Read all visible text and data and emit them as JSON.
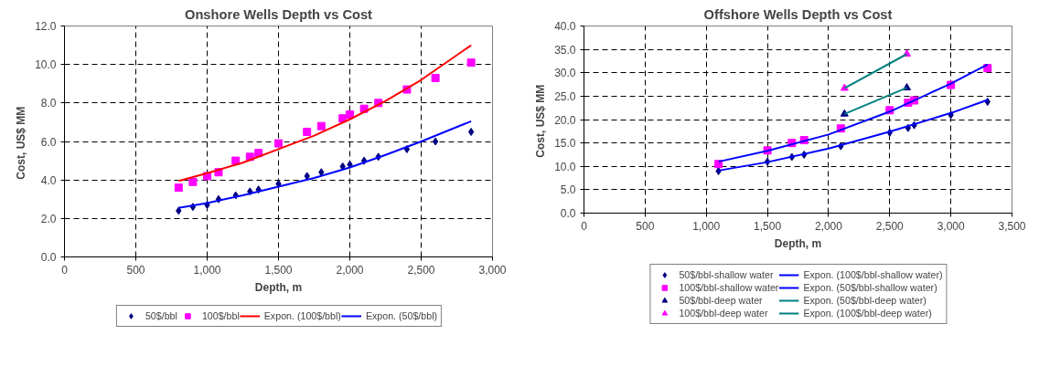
{
  "chart_data": [
    {
      "type": "scatter",
      "title": "Onshore Wells Depth vs Cost",
      "xlabel": "Depth, m",
      "ylabel": "Cost,  US$ MM",
      "xlim": [
        0,
        3000
      ],
      "xticks": [
        0,
        500,
        {
          "value": 1000,
          "label": "1,000"
        },
        {
          "value": 1500,
          "label": "1,500"
        },
        {
          "value": 2000,
          "label": "2,000"
        },
        {
          "value": 2500,
          "label": "2,500"
        },
        {
          "value": 3000,
          "label": "3,000"
        }
      ],
      "ylim": [
        0,
        12
      ],
      "yticks": [
        {
          "value": 0,
          "label": "0.0"
        },
        {
          "value": 2,
          "label": "2.0"
        },
        {
          "value": 4,
          "label": "4.0"
        },
        {
          "value": 6,
          "label": "6.0"
        },
        {
          "value": 8,
          "label": "8.0"
        },
        {
          "value": 10,
          "label": "10.0"
        },
        {
          "value": 12,
          "label": "12.0"
        }
      ],
      "grid": true,
      "legend": "bottom",
      "line_style": "solid",
      "series": [
        {
          "name": "50$/bbl",
          "marker": "diamond",
          "color": "#000080",
          "x": [
            800,
            900,
            1000,
            1080,
            1200,
            1300,
            1360,
            1500,
            1700,
            1800,
            1950,
            2000,
            2100,
            2200,
            2400,
            2600,
            2850
          ],
          "values": [
            2.4,
            2.6,
            2.7,
            3.0,
            3.2,
            3.4,
            3.5,
            3.8,
            4.2,
            4.4,
            4.7,
            4.8,
            5.0,
            5.2,
            5.6,
            6.0,
            6.5
          ]
        },
        {
          "name": "100$/bbl",
          "marker": "square",
          "color": "#ff00ff",
          "x": [
            800,
            900,
            1000,
            1080,
            1200,
            1300,
            1360,
            1500,
            1700,
            1800,
            1950,
            2000,
            2100,
            2200,
            2400,
            2600,
            2850
          ],
          "values": [
            3.6,
            3.9,
            4.2,
            4.4,
            5.0,
            5.2,
            5.4,
            5.9,
            6.5,
            6.8,
            7.2,
            7.4,
            7.7,
            8.0,
            8.7,
            9.3,
            10.1
          ]
        },
        {
          "name": "Expon. (100$/bbl)",
          "type": "line",
          "color": "#ff0000",
          "x": [
            800,
            1000,
            1250,
            1500,
            1750,
            2000,
            2250,
            2500,
            2850
          ],
          "values": [
            3.95,
            4.35,
            4.9,
            5.6,
            6.3,
            7.15,
            8.1,
            9.2,
            11.0
          ]
        },
        {
          "name": "Expon. (50$/bbl)",
          "type": "line",
          "color": "#0000ff",
          "x": [
            800,
            1000,
            1250,
            1500,
            1750,
            2000,
            2250,
            2500,
            2850
          ],
          "values": [
            2.55,
            2.8,
            3.2,
            3.65,
            4.1,
            4.65,
            5.3,
            6.0,
            7.05
          ]
        }
      ]
    },
    {
      "type": "scatter",
      "title": "Offshore Wells Depth vs Cost",
      "xlabel": "Depth, m",
      "ylabel": "Cost,  US$ MM",
      "xlim": [
        0,
        3500
      ],
      "xticks": [
        0,
        500,
        {
          "value": 1000,
          "label": "1,000"
        },
        {
          "value": 1500,
          "label": "1,500"
        },
        {
          "value": 2000,
          "label": "2,000"
        },
        {
          "value": 2500,
          "label": "2,500"
        },
        {
          "value": 3000,
          "label": "3,000"
        },
        {
          "value": 3500,
          "label": "3,500"
        }
      ],
      "ylim": [
        0,
        40
      ],
      "yticks": [
        {
          "value": 0,
          "label": "0.0"
        },
        {
          "value": 5,
          "label": "5.0"
        },
        {
          "value": 10,
          "label": "10.0"
        },
        {
          "value": 15,
          "label": "15.0"
        },
        {
          "value": 20,
          "label": "20.0"
        },
        {
          "value": 25,
          "label": "25.0"
        },
        {
          "value": 30,
          "label": "30.0"
        },
        {
          "value": 35,
          "label": "35.0"
        },
        {
          "value": 40,
          "label": "40.0"
        }
      ],
      "grid": true,
      "legend": "bottom",
      "line_style": "solid",
      "series": [
        {
          "name": "50$/bbl-shallow water",
          "marker": "diamond",
          "color": "#000080",
          "x": [
            1100,
            1500,
            1700,
            1800,
            2100,
            2500,
            2650,
            2700,
            3000,
            3300
          ],
          "values": [
            9.0,
            11.0,
            12.0,
            12.5,
            14.3,
            17.2,
            18.2,
            18.8,
            21.0,
            23.8
          ]
        },
        {
          "name": "100$/bbl-shallow water",
          "marker": "square",
          "color": "#ff00ff",
          "x": [
            1100,
            1500,
            1700,
            1800,
            2100,
            2500,
            2650,
            2700,
            3000,
            3300
          ],
          "values": [
            10.5,
            13.4,
            15.0,
            15.6,
            18.1,
            22.0,
            23.6,
            24.1,
            27.4,
            31.0
          ]
        },
        {
          "name": "50$/bbl-deep water",
          "marker": "triangle",
          "color": "#000080",
          "x": [
            2130,
            2640
          ],
          "values": [
            21.2,
            26.8
          ]
        },
        {
          "name": "100$/bbl-deep water",
          "marker": "triangle",
          "color": "#ff00ff",
          "x": [
            2130,
            2640
          ],
          "values": [
            26.7,
            34.0
          ]
        },
        {
          "name": "Expon. (100$/bbl-shallow water)",
          "type": "line",
          "color": "#0000ff",
          "x": [
            1100,
            1500,
            2000,
            2500,
            3000,
            3300
          ],
          "values": [
            11.0,
            13.3,
            16.8,
            21.7,
            27.7,
            31.8
          ]
        },
        {
          "name": "Expon. (50$/bbl-shallow water)",
          "type": "line",
          "color": "#0000ff",
          "x": [
            1100,
            1500,
            2000,
            2500,
            3000,
            3300
          ],
          "values": [
            9.1,
            10.9,
            13.8,
            17.4,
            21.4,
            24.2
          ]
        },
        {
          "name": "Expon. (50$/bbl-deep water)",
          "type": "line",
          "color": "#008080",
          "x": [
            2130,
            2640
          ],
          "values": [
            21.2,
            26.8
          ]
        },
        {
          "name": "Expon. (100$/bbl-deep water)",
          "type": "line",
          "color": "#008080",
          "x": [
            2130,
            2640
          ],
          "values": [
            26.7,
            34.0
          ]
        }
      ]
    }
  ]
}
